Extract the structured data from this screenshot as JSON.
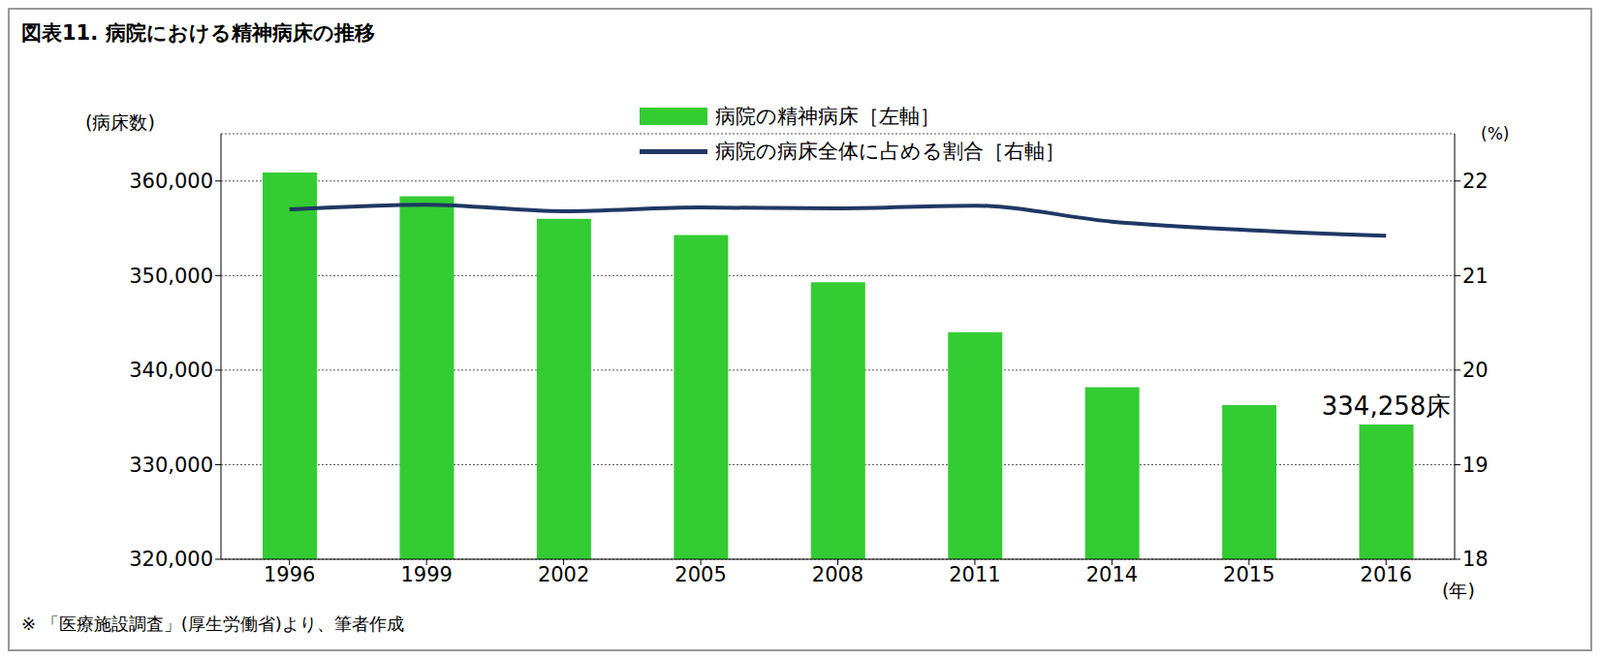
{
  "chart_data": {
    "type": "bar",
    "title": "図表11. 病院における精神病床の推移",
    "categories": [
      "1996",
      "1999",
      "2002",
      "2005",
      "2008",
      "2011",
      "2014",
      "2015",
      "2016"
    ],
    "series": [
      {
        "name": "病院の精神病床［左軸］",
        "type": "bar",
        "color": "#33cc33",
        "values": [
          360900,
          358400,
          356000,
          354300,
          349300,
          344000,
          338200,
          336300,
          334258
        ]
      },
      {
        "name": "病院の病床全体に占める割合［右軸］",
        "type": "line",
        "axis": "y2",
        "color": "#1f3864",
        "values": [
          21.7,
          21.75,
          21.68,
          21.72,
          21.71,
          21.74,
          21.57,
          21.48,
          21.42
        ]
      }
    ],
    "y_label": "(病床数)",
    "y2_label": "(%)",
    "x_label": "(年)",
    "annotations": [
      {
        "category": "2016",
        "text": "334,258床"
      }
    ],
    "note": "※ 「医療施設調査」(厚生労働省)より、筆者作成",
    "ylim": [
      320000,
      365000
    ],
    "yticks": [
      {
        "value": 320000,
        "label": "320,000"
      },
      {
        "value": 330000,
        "label": "330,000"
      },
      {
        "value": 340000,
        "label": "340,000"
      },
      {
        "value": 350000,
        "label": "350,000"
      },
      {
        "value": 360000,
        "label": "360,000"
      }
    ],
    "y2lim": [
      18,
      22.5
    ],
    "y2ticks": [
      18,
      19,
      20,
      21,
      22
    ],
    "grid": true,
    "legend": "top"
  }
}
